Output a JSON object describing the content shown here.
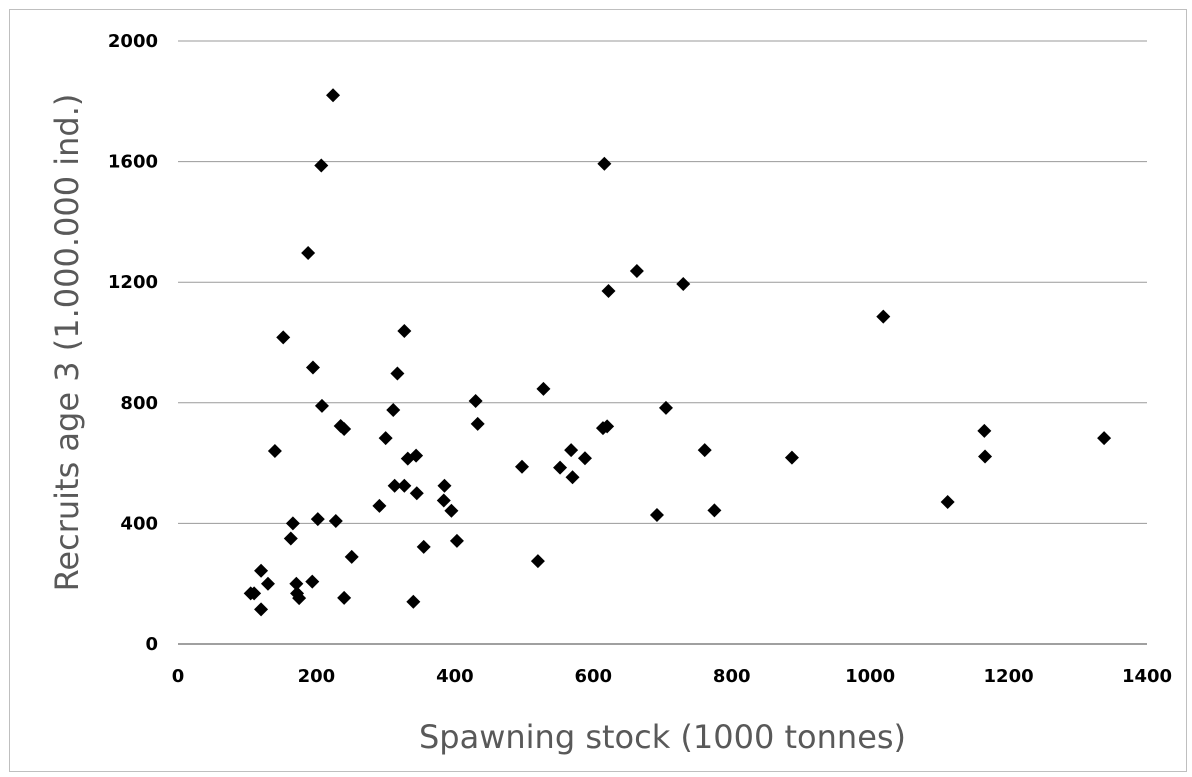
{
  "chart_data": {
    "type": "scatter",
    "xlabel": "Spawning stock (1000 tonnes)",
    "ylabel": "Recruits age 3 (1.000.000 ind.)",
    "xlim": [
      0,
      1400
    ],
    "ylim": [
      0,
      2000
    ],
    "xticks": [
      "0",
      "200",
      "400",
      "600",
      "800",
      "1000",
      "1200",
      "1400"
    ],
    "yticks": [
      "0",
      "400",
      "800",
      "1200",
      "1600",
      "2000"
    ],
    "grid": "horizontal",
    "marker": "diamond",
    "marker_color": "#000000",
    "points": [
      {
        "x": 105,
        "y": 168
      },
      {
        "x": 110,
        "y": 168
      },
      {
        "x": 120,
        "y": 115
      },
      {
        "x": 120,
        "y": 243
      },
      {
        "x": 130,
        "y": 200
      },
      {
        "x": 140,
        "y": 640
      },
      {
        "x": 152,
        "y": 1017
      },
      {
        "x": 163,
        "y": 350
      },
      {
        "x": 166,
        "y": 400
      },
      {
        "x": 171,
        "y": 200
      },
      {
        "x": 172,
        "y": 168
      },
      {
        "x": 175,
        "y": 152
      },
      {
        "x": 188,
        "y": 1297
      },
      {
        "x": 194,
        "y": 207
      },
      {
        "x": 195,
        "y": 917
      },
      {
        "x": 202,
        "y": 414
      },
      {
        "x": 207,
        "y": 1587
      },
      {
        "x": 208,
        "y": 790
      },
      {
        "x": 224,
        "y": 1820
      },
      {
        "x": 228,
        "y": 408
      },
      {
        "x": 235,
        "y": 723
      },
      {
        "x": 240,
        "y": 713
      },
      {
        "x": 240,
        "y": 153
      },
      {
        "x": 251,
        "y": 289
      },
      {
        "x": 291,
        "y": 458
      },
      {
        "x": 300,
        "y": 683
      },
      {
        "x": 311,
        "y": 776
      },
      {
        "x": 313,
        "y": 525
      },
      {
        "x": 317,
        "y": 897
      },
      {
        "x": 327,
        "y": 1038
      },
      {
        "x": 327,
        "y": 525
      },
      {
        "x": 332,
        "y": 615
      },
      {
        "x": 340,
        "y": 140
      },
      {
        "x": 344,
        "y": 625
      },
      {
        "x": 345,
        "y": 500
      },
      {
        "x": 355,
        "y": 322
      },
      {
        "x": 384,
        "y": 476
      },
      {
        "x": 385,
        "y": 525
      },
      {
        "x": 395,
        "y": 442
      },
      {
        "x": 403,
        "y": 342
      },
      {
        "x": 430,
        "y": 806
      },
      {
        "x": 433,
        "y": 730
      },
      {
        "x": 497,
        "y": 588
      },
      {
        "x": 520,
        "y": 275
      },
      {
        "x": 528,
        "y": 846
      },
      {
        "x": 552,
        "y": 585
      },
      {
        "x": 568,
        "y": 643
      },
      {
        "x": 570,
        "y": 553
      },
      {
        "x": 588,
        "y": 616
      },
      {
        "x": 614,
        "y": 716
      },
      {
        "x": 616,
        "y": 1593
      },
      {
        "x": 620,
        "y": 722
      },
      {
        "x": 622,
        "y": 1171
      },
      {
        "x": 663,
        "y": 1237
      },
      {
        "x": 692,
        "y": 428
      },
      {
        "x": 705,
        "y": 783
      },
      {
        "x": 730,
        "y": 1194
      },
      {
        "x": 761,
        "y": 643
      },
      {
        "x": 775,
        "y": 443
      },
      {
        "x": 887,
        "y": 618
      },
      {
        "x": 1019,
        "y": 1086
      },
      {
        "x": 1112,
        "y": 471
      },
      {
        "x": 1165,
        "y": 707
      },
      {
        "x": 1166,
        "y": 622
      },
      {
        "x": 1338,
        "y": 683
      }
    ]
  }
}
